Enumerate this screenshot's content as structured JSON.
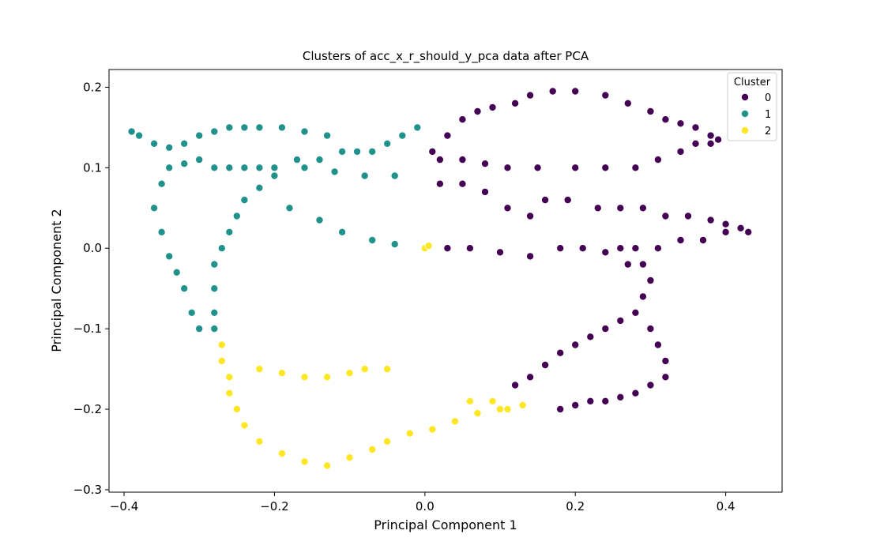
{
  "chart_data": {
    "type": "scatter",
    "title": "Clusters of acc_x_r_should_y_pca data after PCA",
    "xlabel": "Principal Component 1",
    "ylabel": "Principal Component 2",
    "xlim": [
      -0.42,
      0.475
    ],
    "ylim": [
      -0.303,
      0.222
    ],
    "xticks": [
      -0.4,
      -0.2,
      0.0,
      0.2,
      0.4
    ],
    "xtick_labels": [
      "−0.4",
      "−0.2",
      "0.0",
      "0.2",
      "0.4"
    ],
    "yticks": [
      0.2,
      0.1,
      0.0,
      -0.1,
      -0.2,
      -0.3
    ],
    "ytick_labels": [
      "0.2",
      "0.1",
      "0.0",
      "−0.1",
      "−0.2",
      "−0.3"
    ],
    "grid": false,
    "legend": {
      "title": "Cluster",
      "placement": "top-right",
      "entries": [
        {
          "label": "0",
          "color": "#440154"
        },
        {
          "label": "1",
          "color": "#21918c"
        },
        {
          "label": "2",
          "color": "#fde725"
        }
      ]
    },
    "series": [
      {
        "name": "0",
        "color": "#440154",
        "points": [
          [
            0.01,
            0.12
          ],
          [
            0.03,
            0.14
          ],
          [
            0.05,
            0.16
          ],
          [
            0.07,
            0.17
          ],
          [
            0.09,
            0.175
          ],
          [
            0.12,
            0.18
          ],
          [
            0.14,
            0.19
          ],
          [
            0.17,
            0.195
          ],
          [
            0.2,
            0.195
          ],
          [
            0.24,
            0.19
          ],
          [
            0.27,
            0.18
          ],
          [
            0.3,
            0.17
          ],
          [
            0.32,
            0.16
          ],
          [
            0.34,
            0.155
          ],
          [
            0.36,
            0.15
          ],
          [
            0.38,
            0.14
          ],
          [
            0.39,
            0.135
          ],
          [
            0.02,
            0.11
          ],
          [
            0.05,
            0.11
          ],
          [
            0.08,
            0.105
          ],
          [
            0.11,
            0.1
          ],
          [
            0.15,
            0.1
          ],
          [
            0.2,
            0.1
          ],
          [
            0.24,
            0.1
          ],
          [
            0.28,
            0.1
          ],
          [
            0.31,
            0.11
          ],
          [
            0.34,
            0.12
          ],
          [
            0.36,
            0.13
          ],
          [
            0.38,
            0.13
          ],
          [
            0.02,
            0.08
          ],
          [
            0.05,
            0.08
          ],
          [
            0.08,
            0.07
          ],
          [
            0.11,
            0.05
          ],
          [
            0.14,
            0.04
          ],
          [
            0.16,
            0.06
          ],
          [
            0.19,
            0.06
          ],
          [
            0.23,
            0.05
          ],
          [
            0.26,
            0.05
          ],
          [
            0.29,
            0.05
          ],
          [
            0.32,
            0.04
          ],
          [
            0.35,
            0.04
          ],
          [
            0.38,
            0.035
          ],
          [
            0.4,
            0.03
          ],
          [
            0.42,
            0.025
          ],
          [
            0.43,
            0.02
          ],
          [
            0.03,
            0.0
          ],
          [
            0.06,
            0.0
          ],
          [
            0.1,
            -0.005
          ],
          [
            0.14,
            -0.01
          ],
          [
            0.18,
            0.0
          ],
          [
            0.21,
            0.0
          ],
          [
            0.24,
            -0.005
          ],
          [
            0.26,
            0.0
          ],
          [
            0.28,
            0.0
          ],
          [
            0.31,
            0.0
          ],
          [
            0.34,
            0.01
          ],
          [
            0.37,
            0.01
          ],
          [
            0.4,
            0.02
          ],
          [
            0.27,
            -0.02
          ],
          [
            0.29,
            -0.02
          ],
          [
            0.3,
            -0.04
          ],
          [
            0.29,
            -0.06
          ],
          [
            0.28,
            -0.08
          ],
          [
            0.26,
            -0.09
          ],
          [
            0.24,
            -0.1
          ],
          [
            0.22,
            -0.11
          ],
          [
            0.2,
            -0.12
          ],
          [
            0.18,
            -0.13
          ],
          [
            0.16,
            -0.145
          ],
          [
            0.14,
            -0.16
          ],
          [
            0.12,
            -0.17
          ],
          [
            0.3,
            -0.1
          ],
          [
            0.31,
            -0.12
          ],
          [
            0.32,
            -0.14
          ],
          [
            0.32,
            -0.16
          ],
          [
            0.3,
            -0.17
          ],
          [
            0.28,
            -0.18
          ],
          [
            0.26,
            -0.185
          ],
          [
            0.24,
            -0.19
          ],
          [
            0.22,
            -0.19
          ],
          [
            0.2,
            -0.195
          ],
          [
            0.18,
            -0.2
          ]
        ]
      },
      {
        "name": "1",
        "color": "#21918c",
        "points": [
          [
            -0.39,
            0.145
          ],
          [
            -0.38,
            0.14
          ],
          [
            -0.36,
            0.13
          ],
          [
            -0.34,
            0.125
          ],
          [
            -0.32,
            0.13
          ],
          [
            -0.3,
            0.14
          ],
          [
            -0.28,
            0.145
          ],
          [
            -0.26,
            0.15
          ],
          [
            -0.24,
            0.15
          ],
          [
            -0.22,
            0.15
          ],
          [
            -0.19,
            0.15
          ],
          [
            -0.16,
            0.145
          ],
          [
            -0.13,
            0.14
          ],
          [
            -0.34,
            0.1
          ],
          [
            -0.32,
            0.105
          ],
          [
            -0.3,
            0.11
          ],
          [
            -0.28,
            0.1
          ],
          [
            -0.26,
            0.1
          ],
          [
            -0.24,
            0.1
          ],
          [
            -0.22,
            0.1
          ],
          [
            -0.2,
            0.1
          ],
          [
            -0.17,
            0.11
          ],
          [
            -0.14,
            0.11
          ],
          [
            -0.11,
            0.12
          ],
          [
            -0.09,
            0.12
          ],
          [
            -0.07,
            0.12
          ],
          [
            -0.05,
            0.13
          ],
          [
            -0.03,
            0.14
          ],
          [
            -0.01,
            0.15
          ],
          [
            -0.35,
            0.08
          ],
          [
            -0.36,
            0.05
          ],
          [
            -0.35,
            0.02
          ],
          [
            -0.34,
            -0.01
          ],
          [
            -0.33,
            -0.03
          ],
          [
            -0.32,
            -0.05
          ],
          [
            -0.31,
            -0.08
          ],
          [
            -0.3,
            -0.1
          ],
          [
            -0.24,
            0.06
          ],
          [
            -0.25,
            0.04
          ],
          [
            -0.26,
            0.02
          ],
          [
            -0.27,
            0.0
          ],
          [
            -0.28,
            -0.02
          ],
          [
            -0.28,
            -0.05
          ],
          [
            -0.28,
            -0.08
          ],
          [
            -0.28,
            -0.1
          ],
          [
            -0.22,
            0.075
          ],
          [
            -0.18,
            0.05
          ],
          [
            -0.14,
            0.035
          ],
          [
            -0.11,
            0.02
          ],
          [
            -0.07,
            0.01
          ],
          [
            -0.04,
            0.005
          ],
          [
            -0.2,
            0.09
          ],
          [
            -0.16,
            0.1
          ],
          [
            -0.12,
            0.095
          ],
          [
            -0.08,
            0.09
          ],
          [
            -0.04,
            0.09
          ]
        ]
      },
      {
        "name": "2",
        "color": "#fde725",
        "points": [
          [
            -0.27,
            -0.12
          ],
          [
            -0.27,
            -0.14
          ],
          [
            -0.26,
            -0.16
          ],
          [
            -0.26,
            -0.18
          ],
          [
            -0.25,
            -0.2
          ],
          [
            -0.24,
            -0.22
          ],
          [
            -0.22,
            -0.24
          ],
          [
            -0.19,
            -0.255
          ],
          [
            -0.16,
            -0.265
          ],
          [
            -0.13,
            -0.27
          ],
          [
            -0.1,
            -0.26
          ],
          [
            -0.07,
            -0.25
          ],
          [
            -0.05,
            -0.24
          ],
          [
            -0.02,
            -0.23
          ],
          [
            0.01,
            -0.225
          ],
          [
            0.04,
            -0.215
          ],
          [
            0.07,
            -0.205
          ],
          [
            0.1,
            -0.2
          ],
          [
            0.13,
            -0.195
          ],
          [
            -0.22,
            -0.15
          ],
          [
            -0.19,
            -0.155
          ],
          [
            -0.16,
            -0.16
          ],
          [
            -0.13,
            -0.16
          ],
          [
            -0.1,
            -0.155
          ],
          [
            -0.08,
            -0.15
          ],
          [
            -0.05,
            -0.15
          ],
          [
            0.0,
            0.0
          ],
          [
            0.005,
            0.003
          ],
          [
            0.06,
            -0.19
          ],
          [
            0.09,
            -0.19
          ],
          [
            0.11,
            -0.2
          ]
        ]
      }
    ]
  }
}
